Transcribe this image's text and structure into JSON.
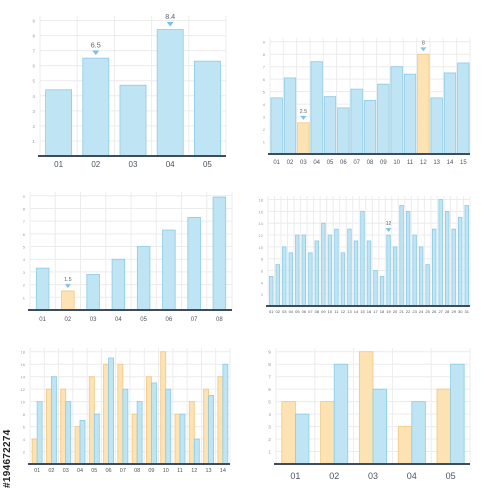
{
  "colors": {
    "blue_fill": "#bfe4f3",
    "blue_stroke": "#8ccbe6",
    "yellow_fill": "#fde3b3",
    "yellow_stroke": "#f2c77d",
    "marker": "#7cc3e3"
  },
  "watermark": "#194672274",
  "chart_data": [
    {
      "type": "bar",
      "categories": [
        "01",
        "02",
        "03",
        "04",
        "05"
      ],
      "values": [
        4.4,
        6.5,
        4.7,
        8.4,
        6.3
      ],
      "highlight": [],
      "callouts": [
        {
          "index": 1,
          "label": "6.5"
        },
        {
          "index": 3,
          "label": "8.4"
        }
      ],
      "yticks": [
        1,
        2,
        3,
        4,
        5,
        6,
        7,
        8,
        9
      ],
      "ylim": [
        0,
        9.3
      ],
      "grid": true
    },
    {
      "type": "bar",
      "categories": [
        "01",
        "02",
        "03",
        "04",
        "05",
        "06",
        "07",
        "08",
        "09",
        "10",
        "11",
        "12",
        "13",
        "14",
        "15"
      ],
      "values": [
        4.5,
        6.1,
        2.5,
        7.4,
        4.6,
        3.7,
        5.2,
        4.3,
        5.6,
        7.0,
        6.4,
        8.0,
        4.5,
        6.5,
        7.3
      ],
      "highlight": [
        2,
        11
      ],
      "callouts": [
        {
          "index": 2,
          "label": "2.5"
        },
        {
          "index": 11,
          "label": "8"
        }
      ],
      "yticks": [
        1,
        2,
        3,
        4,
        5,
        6,
        7,
        8,
        9
      ],
      "ylim": [
        0,
        9.3
      ],
      "grid": true
    },
    {
      "type": "bar",
      "categories": [
        "01",
        "02",
        "03",
        "04",
        "05",
        "06",
        "07",
        "08"
      ],
      "values": [
        3.3,
        1.5,
        2.8,
        4.0,
        5.0,
        6.3,
        7.3,
        8.9
      ],
      "highlight": [
        1
      ],
      "callouts": [
        {
          "index": 1,
          "label": "1.5"
        }
      ],
      "yticks": [
        1,
        2,
        3,
        4,
        5,
        6,
        7,
        8,
        9
      ],
      "ylim": [
        0,
        9.3
      ],
      "grid": true
    },
    {
      "type": "bar",
      "categories": [
        "01",
        "02",
        "03",
        "04",
        "05",
        "06",
        "07",
        "08",
        "09",
        "10",
        "11",
        "12",
        "13",
        "14",
        "15",
        "16",
        "17",
        "18",
        "19",
        "20",
        "21",
        "22",
        "23",
        "24",
        "25",
        "26",
        "27",
        "28",
        "29",
        "30",
        "31"
      ],
      "values": [
        5,
        7,
        10,
        9,
        12,
        12,
        9,
        11,
        14,
        12,
        13,
        9,
        13,
        11,
        16,
        11,
        6,
        5,
        12,
        10,
        17,
        16,
        12,
        10,
        7,
        13,
        18,
        16,
        13,
        15,
        17
      ],
      "highlight": [],
      "callouts": [
        {
          "index": 18,
          "label": "12"
        }
      ],
      "yticks": [
        2,
        4,
        6,
        8,
        10,
        12,
        14,
        16,
        18
      ],
      "ylim": [
        0,
        18.6
      ],
      "grid": true
    },
    {
      "type": "bar",
      "categories": [
        "01",
        "02",
        "03",
        "04",
        "05",
        "06",
        "07",
        "08",
        "09",
        "10",
        "11",
        "12",
        "13",
        "14"
      ],
      "series": [
        {
          "color": "yellow",
          "values": [
            4,
            12,
            12,
            6,
            14,
            16,
            16,
            8,
            14,
            18,
            8,
            10,
            12,
            14
          ]
        },
        {
          "color": "blue",
          "values": [
            10,
            14,
            10,
            7,
            8,
            17,
            12,
            10,
            13,
            12,
            8,
            4,
            11,
            16
          ]
        }
      ],
      "callouts": [],
      "yticks": [
        2,
        4,
        6,
        8,
        10,
        12,
        14,
        16,
        18
      ],
      "ylim": [
        0,
        18.6
      ],
      "grid": true
    },
    {
      "type": "bar",
      "categories": [
        "01",
        "02",
        "03",
        "04",
        "05"
      ],
      "series": [
        {
          "color": "yellow",
          "values": [
            5,
            5,
            9,
            3,
            6
          ]
        },
        {
          "color": "blue",
          "values": [
            4,
            8,
            6,
            5,
            8
          ]
        }
      ],
      "callouts": [],
      "yticks": [
        1,
        2,
        3,
        4,
        5,
        6,
        7,
        8,
        9
      ],
      "ylim": [
        0,
        9.3
      ],
      "grid": true
    }
  ]
}
